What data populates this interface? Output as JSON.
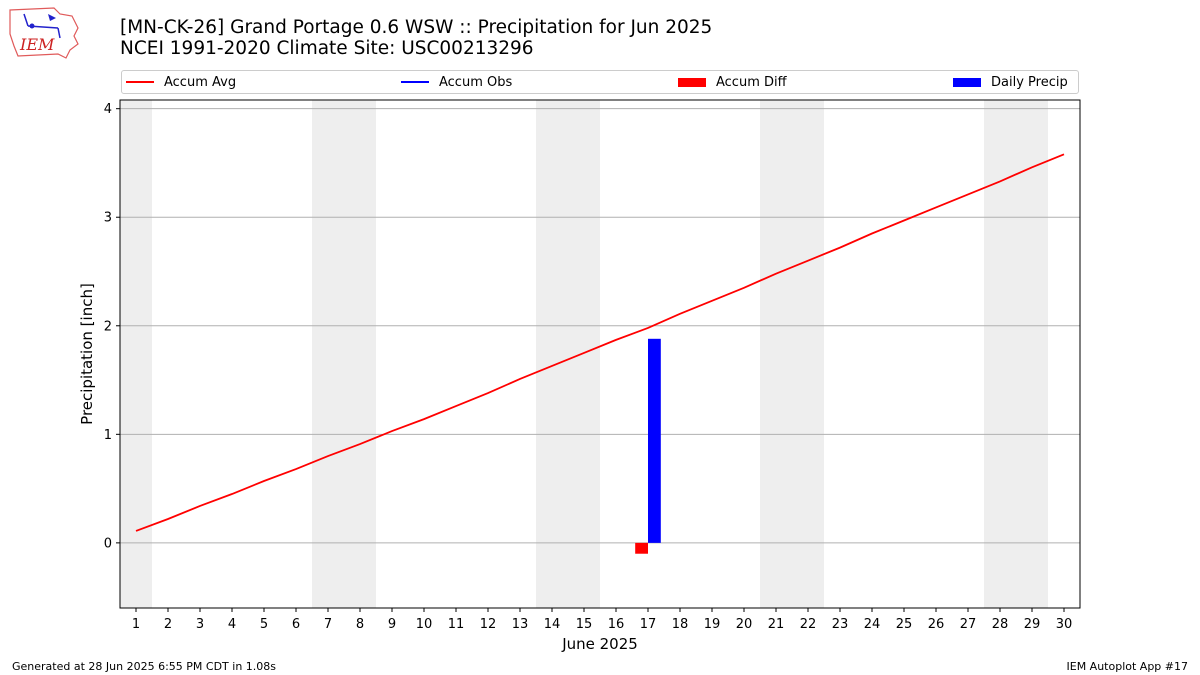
{
  "header": {
    "title_line1": "[MN-CK-26] Grand Portage 0.6 WSW :: Precipitation for Jun 2025",
    "title_line2": "NCEI 1991-2020 Climate Site: USC00213296"
  },
  "logo": {
    "text": "IEM"
  },
  "legend": {
    "placement": "top",
    "items": [
      {
        "label": "Accum Avg",
        "color": "#ff0000",
        "kind": "line"
      },
      {
        "label": "Accum Obs",
        "color": "#0000ff",
        "kind": "line"
      },
      {
        "label": "Accum Diff",
        "color": "#ff0000",
        "kind": "box"
      },
      {
        "label": "Daily Precip",
        "color": "#0000ff",
        "kind": "box"
      }
    ]
  },
  "chart_data": {
    "type": "line",
    "xlabel": "June 2025",
    "ylabel": "Precipitation [inch]",
    "xlim": [
      0.5,
      30.5
    ],
    "ylim": [
      -0.6,
      4.08
    ],
    "yticks": [
      0,
      1,
      2,
      3,
      4
    ],
    "x": [
      1,
      2,
      3,
      4,
      5,
      6,
      7,
      8,
      9,
      10,
      11,
      12,
      13,
      14,
      15,
      16,
      17,
      18,
      19,
      20,
      21,
      22,
      23,
      24,
      25,
      26,
      27,
      28,
      29,
      30
    ],
    "grid": "horizontal",
    "weekend_shading": [
      [
        0.5,
        1.5
      ],
      [
        6.5,
        8.5
      ],
      [
        13.5,
        15.5
      ],
      [
        20.5,
        22.5
      ],
      [
        27.5,
        29.5
      ]
    ],
    "series": [
      {
        "name": "Accum Avg",
        "color": "#ff0000",
        "values": [
          0.11,
          0.22,
          0.34,
          0.45,
          0.57,
          0.68,
          0.8,
          0.91,
          1.03,
          1.14,
          1.26,
          1.38,
          1.51,
          1.63,
          1.75,
          1.87,
          1.98,
          2.11,
          2.23,
          2.35,
          2.48,
          2.6,
          2.72,
          2.85,
          2.97,
          3.09,
          3.21,
          3.33,
          3.46,
          3.58
        ]
      },
      {
        "name": "Accum Diff",
        "color": "#ff0000",
        "type": "bar",
        "points": [
          [
            17,
            -0.1
          ]
        ]
      },
      {
        "name": "Daily Precip",
        "color": "#0000ff",
        "type": "bar",
        "points": [
          [
            17,
            1.88
          ]
        ]
      }
    ]
  },
  "footer": {
    "left": "Generated at 28 Jun 2025 6:55 PM CDT in 1.08s",
    "right": "IEM Autoplot App #17"
  }
}
